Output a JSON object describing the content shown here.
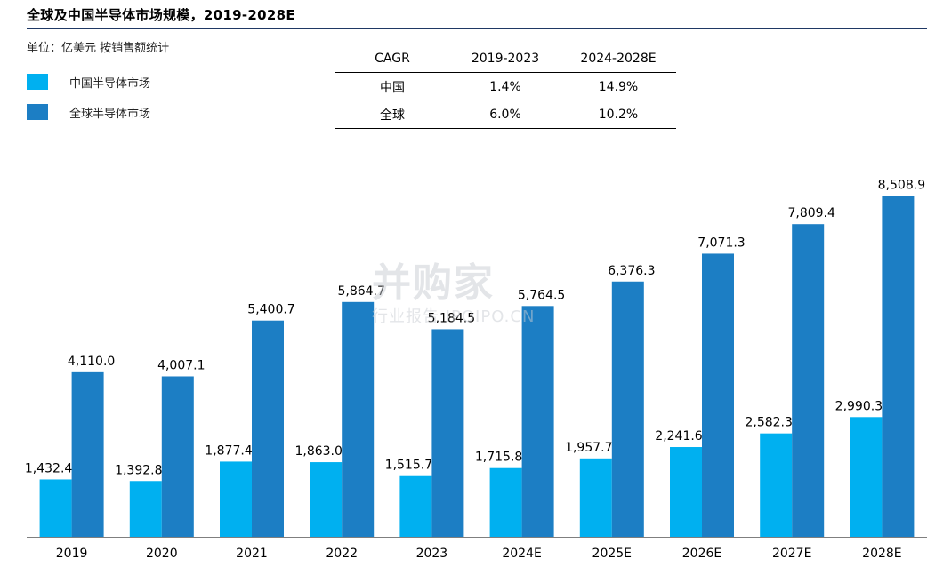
{
  "title": "全球及中国半导体市场规模，2019-2028E",
  "unit_note": "单位：亿美元  按销售额统计",
  "colors": {
    "china": "#00b0f0",
    "global": "#1c7ec4",
    "rule": "#1f3864"
  },
  "table": {
    "headers": [
      "CAGR",
      "2019-2023",
      "2024-2028E"
    ],
    "rows": [
      [
        "中国",
        "1.4%",
        "14.9%"
      ],
      [
        "全球",
        "6.0%",
        "10.2%"
      ]
    ]
  },
  "watermark": {
    "main": "并购家",
    "sub": "行业报告 IPOIPO.CN"
  },
  "chart_data": {
    "type": "bar",
    "categories": [
      "2019",
      "2020",
      "2021",
      "2022",
      "2023",
      "2024E",
      "2025E",
      "2026E",
      "2027E",
      "2028E"
    ],
    "series": [
      {
        "name": "中国半导体市场",
        "values": [
          1432.4,
          1392.8,
          1877.4,
          1863.0,
          1515.7,
          1715.8,
          1957.7,
          2241.6,
          2582.3,
          2990.3
        ],
        "labels": [
          "1,432.4",
          "1,392.8",
          "1,877.4",
          "1,863.0",
          "1,515.7",
          "1,715.8",
          "1,957.7",
          "2,241.6",
          "2,582.3",
          "2,990.3"
        ]
      },
      {
        "name": "全球半导体市场",
        "values": [
          4110.0,
          4007.1,
          5400.7,
          5864.7,
          5184.5,
          5764.5,
          6376.3,
          7071.3,
          7809.4,
          8508.9
        ],
        "labels": [
          "4,110.0",
          "4,007.1",
          "5,400.7",
          "5,864.7",
          "5,184.5",
          "5,764.5",
          "6,376.3",
          "7,071.3",
          "7,809.4",
          "8,508.9"
        ]
      }
    ],
    "ylim": [
      0,
      10300
    ],
    "grid": false,
    "legend": "top-left"
  }
}
